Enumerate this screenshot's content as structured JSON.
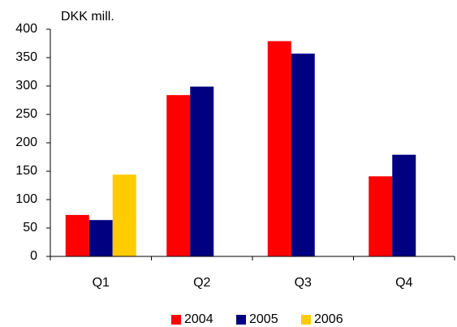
{
  "chart_data": {
    "type": "bar",
    "y_axis_label": "DKK mill.",
    "categories": [
      "Q1",
      "Q2",
      "Q3",
      "Q4"
    ],
    "series": [
      {
        "name": "2004",
        "color": "#ff0000",
        "values": [
          73,
          284,
          379,
          141
        ]
      },
      {
        "name": "2005",
        "color": "#000080",
        "values": [
          64,
          299,
          357,
          179
        ]
      },
      {
        "name": "2006",
        "color": "#ffcc00",
        "values": [
          144,
          null,
          null,
          null
        ]
      }
    ],
    "ylim": [
      0,
      400
    ],
    "yticks": [
      0,
      50,
      100,
      150,
      200,
      250,
      300,
      350,
      400
    ],
    "grid": false,
    "legend": "bottom"
  }
}
